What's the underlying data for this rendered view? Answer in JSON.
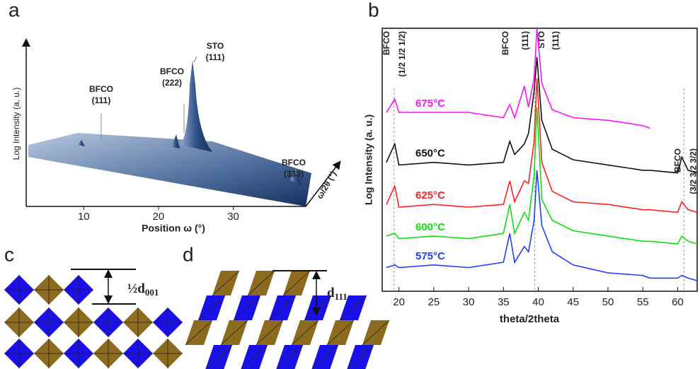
{
  "panel_a": {
    "label": "a",
    "y_label": "Log Intensity (a. u.)",
    "x_label": "Position ω (°)",
    "depth_label": "ω/2θ (°)",
    "xlim": [
      2.3,
      39.7
    ],
    "xticks": [
      10,
      20,
      30
    ],
    "peaks": [
      {
        "lines": [
          "BFCO",
          "(111)"
        ]
      },
      {
        "lines": [
          "BFCO",
          "(222)"
        ]
      },
      {
        "lines": [
          "STO",
          "(111)"
        ]
      },
      {
        "lines": [
          "BFCO",
          "(333)"
        ]
      }
    ]
  },
  "chart_data": {
    "type": "line",
    "label": "b",
    "x_label": "theta/2theta",
    "y_label": "Log Intensity (a. u.)",
    "xlim": [
      17.6,
      62.8
    ],
    "xticks": [
      20,
      25,
      30,
      35,
      40,
      45,
      50,
      55,
      60
    ],
    "ylim": [
      0,
      100
    ],
    "x": [
      18.2,
      19.4,
      20,
      25,
      30,
      35,
      35.9,
      36.6,
      38,
      38.6,
      39.4,
      39.8,
      40.5,
      42,
      45,
      50,
      55,
      56,
      60,
      60.6,
      61.5,
      62.8
    ],
    "series": [
      {
        "name": "675°C",
        "color": "#ff10ff",
        "values": [
          68,
          73,
          68,
          68,
          68,
          66,
          71,
          66,
          78,
          70,
          81,
          100,
          79,
          69,
          66,
          65,
          63,
          62,
          null,
          null,
          null,
          null
        ]
      },
      {
        "name": "650°C",
        "color": "#111111",
        "values": [
          49,
          56,
          48,
          49,
          48,
          49,
          57,
          52,
          56,
          60,
          76,
          89,
          65,
          54,
          50,
          48,
          46,
          46,
          45,
          51,
          46,
          45
        ]
      },
      {
        "name": "625°C",
        "color": "#ff2020",
        "values": [
          33,
          40,
          32,
          33,
          32,
          33,
          42,
          34,
          42,
          41,
          57,
          81,
          49,
          38,
          34,
          33,
          31,
          31,
          30,
          34,
          31,
          30
        ]
      },
      {
        "name": "600°C",
        "color": "#10e010",
        "values": [
          21,
          22,
          20,
          21,
          20,
          22,
          33,
          22,
          30,
          27,
          44,
          70,
          35,
          27,
          23,
          21,
          19,
          19,
          18,
          21,
          19,
          18
        ]
      },
      {
        "name": "575°C",
        "color": "#2040ff",
        "values": [
          9,
          10,
          9,
          10,
          9,
          11,
          22,
          11,
          17,
          15,
          27,
          46,
          25,
          15,
          10,
          7,
          6,
          5,
          5,
          6,
          5,
          4
        ]
      }
    ],
    "markers": [
      {
        "x": 19.3,
        "lines": [
          "BFCO",
          "(1/2 1/2 1/2)"
        ]
      },
      {
        "x": 37.2,
        "lines": [
          "BFCO",
          "(111)"
        ]
      },
      {
        "x": 39.5,
        "lines": [
          "STO",
          "(111)"
        ]
      },
      {
        "x": 60.9,
        "lines": [
          "BFCO",
          "(3/2 3/2 3/2)"
        ]
      }
    ]
  },
  "panel_c": {
    "label": "c",
    "spacing": {
      "main": "½d",
      "sub": "001"
    }
  },
  "panel_d": {
    "label": "d",
    "spacing": {
      "main": "d",
      "sub": "111"
    }
  }
}
